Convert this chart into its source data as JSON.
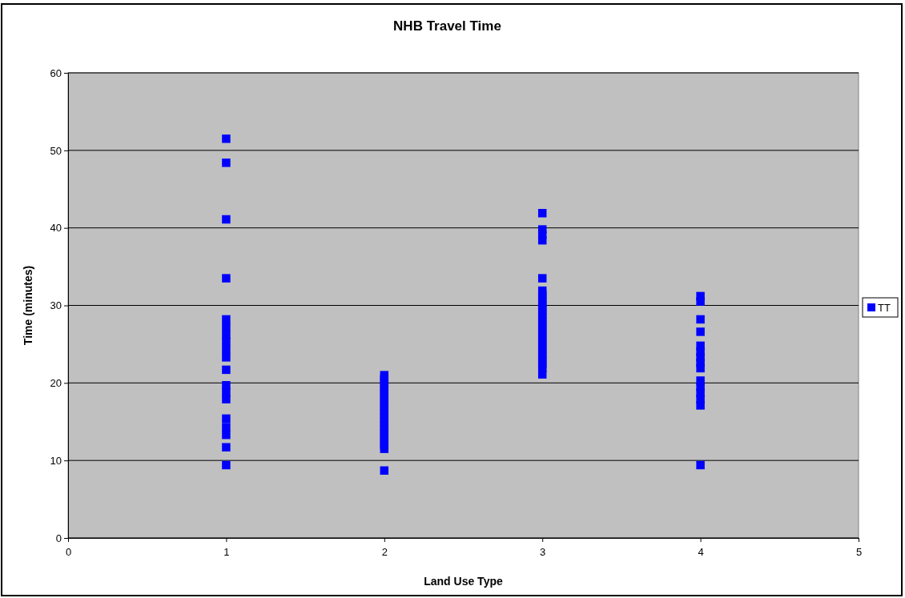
{
  "chart_data": {
    "type": "scatter",
    "title": "NHB Travel Time",
    "xlabel": "Land Use Type",
    "ylabel": "Time (minutes)",
    "xlim": [
      0,
      5
    ],
    "xticks": [
      0,
      1,
      2,
      3,
      4,
      5
    ],
    "ylim": [
      0,
      60
    ],
    "yticks": [
      0,
      10,
      20,
      30,
      40,
      50,
      60
    ],
    "grid": "y",
    "legend": "right",
    "marker": "square",
    "series": [
      {
        "name": "TT",
        "color": "#0000ff",
        "x": [
          1,
          1,
          1,
          1,
          1,
          1,
          1,
          1,
          1,
          1,
          1,
          1,
          1,
          1,
          1,
          1,
          1,
          1,
          1,
          2,
          2,
          2,
          2,
          2,
          2,
          2,
          2,
          2,
          2,
          2,
          2,
          2,
          2,
          2,
          2,
          2,
          2,
          2,
          2,
          2,
          3,
          3,
          3,
          3,
          3,
          3,
          3,
          3,
          3,
          3,
          3,
          3,
          3,
          3,
          3,
          3,
          3,
          3,
          3,
          3,
          3,
          3,
          3,
          3,
          3,
          3,
          3,
          4,
          4,
          4,
          4,
          4,
          4,
          4,
          4,
          4,
          4,
          4,
          4,
          4,
          4,
          4
        ],
        "values": [
          51.5,
          48.4,
          41.1,
          33.5,
          28.2,
          27.2,
          26.2,
          25.3,
          24.3,
          23.3,
          21.7,
          19.7,
          18.8,
          17.9,
          15.4,
          14.3,
          13.3,
          11.7,
          9.4,
          21,
          20.5,
          20,
          19.5,
          19,
          18.5,
          18,
          17.5,
          17,
          16.5,
          16,
          15.5,
          15,
          14.5,
          14,
          13.5,
          13,
          12.5,
          12,
          11.5,
          8.7,
          41.9,
          39.8,
          39.1,
          38.4,
          33.5,
          31.9,
          31.4,
          30.9,
          30.4,
          29.9,
          29.4,
          28.9,
          28.4,
          27.9,
          27.4,
          26.9,
          26.4,
          25.9,
          25.4,
          24.9,
          24.4,
          23.9,
          23.4,
          22.9,
          22.4,
          21.9,
          21.1,
          31.2,
          30.5,
          28.2,
          26.6,
          24.8,
          24,
          23.3,
          22.6,
          21.9,
          20.3,
          19.5,
          18.7,
          17.9,
          17.1,
          9.4
        ]
      }
    ]
  }
}
